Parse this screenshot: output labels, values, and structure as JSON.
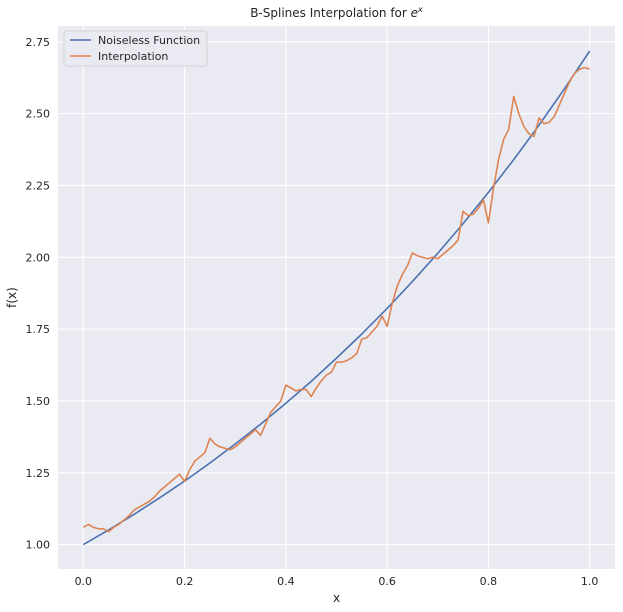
{
  "chart_data": {
    "type": "line",
    "title_prefix": "B-Splines Interpolation for ",
    "title_base": "e",
    "title_sup": "x",
    "xlabel": "x",
    "ylabel": "f(x)",
    "xlim": [
      -0.05,
      1.05
    ],
    "ylim": [
      0.915,
      2.805
    ],
    "xticks": [
      0.0,
      0.2,
      0.4,
      0.6,
      0.8,
      1.0
    ],
    "xtick_labels": [
      "0.0",
      "0.2",
      "0.4",
      "0.6",
      "0.8",
      "1.0"
    ],
    "yticks": [
      1.0,
      1.25,
      1.5,
      1.75,
      2.0,
      2.25,
      2.5,
      2.75
    ],
    "ytick_labels": [
      "1.00",
      "1.25",
      "1.50",
      "1.75",
      "2.00",
      "2.25",
      "2.50",
      "2.75"
    ],
    "grid": true,
    "legend_position": "top-left",
    "series": [
      {
        "name": "Noiseless Function",
        "color": "#4c72b0",
        "x": [
          0.0,
          0.05,
          0.1,
          0.15,
          0.2,
          0.25,
          0.3,
          0.35,
          0.4,
          0.45,
          0.5,
          0.55,
          0.6,
          0.65,
          0.7,
          0.75,
          0.8,
          0.85,
          0.9,
          0.95,
          1.0
        ],
        "y": [
          1.0,
          1.051,
          1.105,
          1.162,
          1.221,
          1.284,
          1.35,
          1.419,
          1.492,
          1.568,
          1.649,
          1.733,
          1.822,
          1.916,
          2.014,
          2.117,
          2.226,
          2.34,
          2.46,
          2.586,
          2.718
        ]
      },
      {
        "name": "Interpolation",
        "color": "#dd8452",
        "x": [
          0.0,
          0.01,
          0.02,
          0.03,
          0.04,
          0.05,
          0.06,
          0.07,
          0.08,
          0.09,
          0.1,
          0.11,
          0.12,
          0.13,
          0.14,
          0.15,
          0.16,
          0.17,
          0.18,
          0.19,
          0.2,
          0.21,
          0.22,
          0.23,
          0.24,
          0.25,
          0.26,
          0.27,
          0.28,
          0.29,
          0.3,
          0.31,
          0.32,
          0.33,
          0.34,
          0.35,
          0.36,
          0.37,
          0.38,
          0.39,
          0.4,
          0.41,
          0.42,
          0.43,
          0.44,
          0.45,
          0.46,
          0.47,
          0.48,
          0.49,
          0.5,
          0.51,
          0.52,
          0.53,
          0.54,
          0.55,
          0.56,
          0.57,
          0.58,
          0.59,
          0.6,
          0.61,
          0.62,
          0.63,
          0.64,
          0.65,
          0.66,
          0.67,
          0.68,
          0.69,
          0.7,
          0.71,
          0.72,
          0.73,
          0.74,
          0.75,
          0.76,
          0.77,
          0.78,
          0.79,
          0.8,
          0.81,
          0.82,
          0.83,
          0.84,
          0.85,
          0.86,
          0.87,
          0.88,
          0.89,
          0.9,
          0.91,
          0.92,
          0.93,
          0.94,
          0.95,
          0.96,
          0.97,
          0.98,
          0.99,
          1.0
        ],
        "y": [
          1.06,
          1.07,
          1.06,
          1.055,
          1.055,
          1.045,
          1.06,
          1.07,
          1.085,
          1.1,
          1.12,
          1.13,
          1.14,
          1.15,
          1.165,
          1.185,
          1.2,
          1.215,
          1.23,
          1.245,
          1.22,
          1.26,
          1.29,
          1.305,
          1.32,
          1.37,
          1.35,
          1.34,
          1.335,
          1.33,
          1.34,
          1.355,
          1.37,
          1.385,
          1.4,
          1.38,
          1.42,
          1.46,
          1.48,
          1.5,
          1.555,
          1.545,
          1.535,
          1.54,
          1.54,
          1.515,
          1.545,
          1.57,
          1.59,
          1.6,
          1.635,
          1.635,
          1.64,
          1.65,
          1.665,
          1.715,
          1.72,
          1.74,
          1.76,
          1.795,
          1.76,
          1.84,
          1.9,
          1.94,
          1.97,
          2.015,
          2.005,
          2.0,
          1.995,
          2.0,
          1.995,
          2.01,
          2.025,
          2.04,
          2.06,
          2.16,
          2.145,
          2.15,
          2.17,
          2.2,
          2.12,
          2.24,
          2.34,
          2.41,
          2.445,
          2.56,
          2.5,
          2.455,
          2.43,
          2.42,
          2.485,
          2.465,
          2.47,
          2.49,
          2.53,
          2.57,
          2.61,
          2.64,
          2.655,
          2.66,
          2.655
        ]
      }
    ]
  }
}
